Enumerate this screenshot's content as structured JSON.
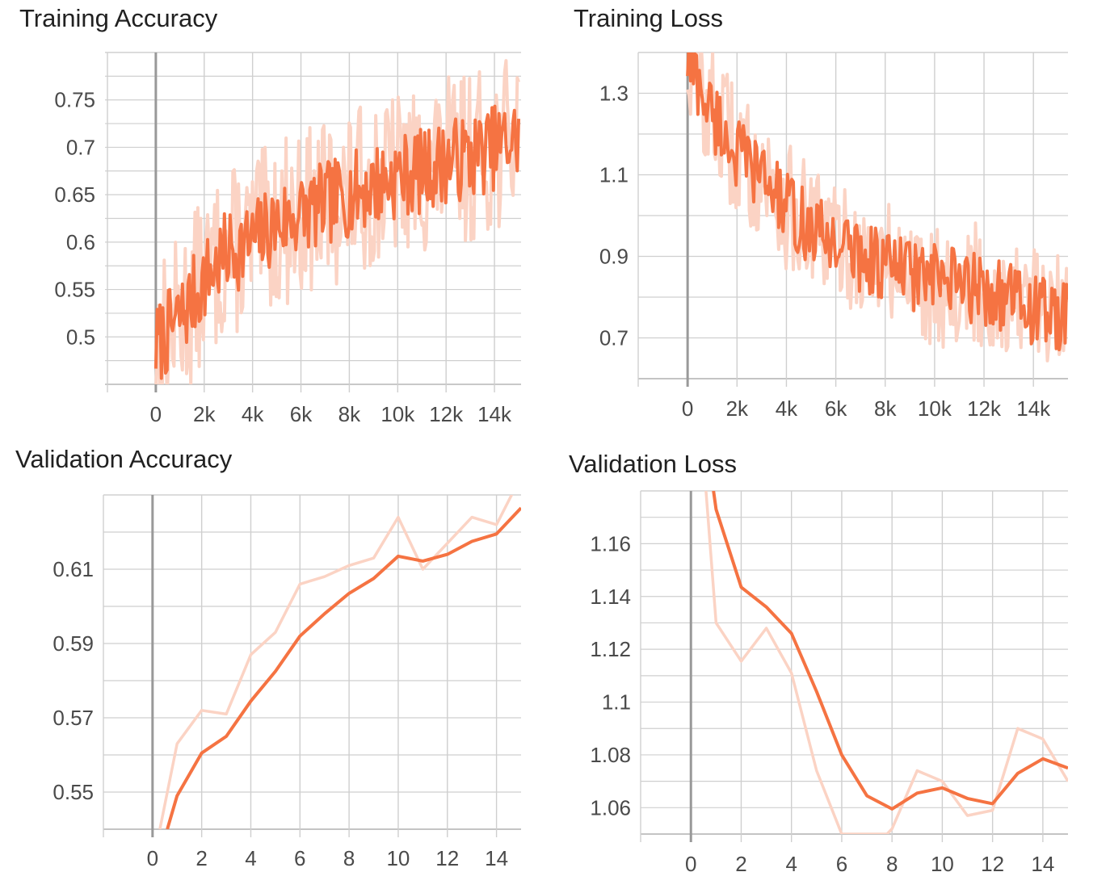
{
  "colors": {
    "smoothed": "#f57342",
    "raw": "#fbd3c4",
    "grid": "#cfcfcf",
    "zero_axis": "#999999"
  },
  "chart_data": [
    {
      "title": "Training Accuracy",
      "type": "line",
      "xlim": [
        -2100,
        15100
      ],
      "ylim": [
        0.45,
        0.8
      ],
      "x_ticks": [
        0,
        2000,
        4000,
        6000,
        8000,
        10000,
        12000,
        14000
      ],
      "x_tick_labels": [
        "0",
        "2k",
        "4k",
        "6k",
        "8k",
        "10k",
        "12k",
        "14k"
      ],
      "y_ticks": [
        0.5,
        0.55,
        0.6,
        0.65,
        0.7,
        0.75
      ],
      "y_tick_labels": [
        "0.5",
        "0.55",
        "0.6",
        "0.65",
        "0.7",
        "0.75"
      ],
      "trend": {
        "x": [
          0,
          1000,
          2000,
          3000,
          4000,
          5000,
          6000,
          7000,
          8000,
          9000,
          10000,
          11000,
          12000,
          13000,
          14000,
          15000
        ],
        "y": [
          0.49,
          0.52,
          0.56,
          0.59,
          0.6,
          0.62,
          0.63,
          0.64,
          0.65,
          0.66,
          0.67,
          0.675,
          0.685,
          0.69,
          0.7,
          0.71
        ]
      },
      "noise": {
        "smoothed": 0.045,
        "raw": 0.09
      },
      "series": [
        {
          "style": "raw",
          "values": "derived-from-trend"
        },
        {
          "style": "smoothed",
          "values": "derived-from-trend"
        }
      ],
      "grid": true,
      "legend": "none"
    },
    {
      "title": "Training Loss",
      "type": "line",
      "xlim": [
        -2000,
        15400
      ],
      "ylim": [
        0.6,
        1.4
      ],
      "x_ticks": [
        0,
        2000,
        4000,
        6000,
        8000,
        10000,
        12000,
        14000
      ],
      "x_tick_labels": [
        "0",
        "2k",
        "4k",
        "6k",
        "8k",
        "10k",
        "12k",
        "14k"
      ],
      "y_ticks": [
        0.7,
        0.9,
        1.1,
        1.3
      ],
      "y_tick_labels": [
        "0.7",
        "0.9",
        "1.1",
        "1.3"
      ],
      "trend": {
        "x": [
          0,
          1000,
          2000,
          3000,
          4000,
          5000,
          6000,
          7000,
          8000,
          9000,
          10000,
          11000,
          12000,
          13000,
          14000,
          15400
        ],
        "y": [
          1.38,
          1.25,
          1.15,
          1.1,
          1.02,
          0.96,
          0.94,
          0.9,
          0.88,
          0.86,
          0.84,
          0.83,
          0.82,
          0.8,
          0.77,
          0.74
        ]
      },
      "noise": {
        "smoothed": 0.09,
        "raw": 0.16
      },
      "series": [
        {
          "style": "raw",
          "values": "derived-from-trend"
        },
        {
          "style": "smoothed",
          "values": "derived-from-trend"
        }
      ],
      "grid": true,
      "legend": "none"
    },
    {
      "title": "Validation Accuracy",
      "type": "line",
      "xlim": [
        -2,
        15
      ],
      "ylim": [
        0.54,
        0.63
      ],
      "x_ticks": [
        0,
        2,
        4,
        6,
        8,
        10,
        12,
        14
      ],
      "x_tick_labels": [
        "0",
        "2",
        "4",
        "6",
        "8",
        "10",
        "12",
        "14"
      ],
      "y_ticks": [
        0.55,
        0.57,
        0.59,
        0.61
      ],
      "y_tick_labels": [
        "0.55",
        "0.57",
        "0.59",
        "0.61"
      ],
      "series": [
        {
          "style": "raw",
          "x": [
            0.3,
            1,
            2,
            3,
            4,
            5,
            6,
            7,
            8,
            9,
            10,
            11,
            12,
            13,
            14,
            15
          ],
          "y": [
            0.54,
            0.563,
            0.572,
            0.571,
            0.587,
            0.593,
            0.606,
            0.608,
            0.611,
            0.613,
            0.624,
            0.61,
            0.617,
            0.624,
            0.622,
            0.635
          ]
        },
        {
          "style": "smoothed",
          "x": [
            0.6,
            1,
            2,
            3,
            4,
            5,
            6,
            7,
            8,
            9,
            10,
            11,
            12,
            13,
            14,
            15
          ],
          "y": [
            0.54,
            0.549,
            0.5605,
            0.565,
            0.5745,
            0.5825,
            0.592,
            0.598,
            0.6035,
            0.6075,
            0.6135,
            0.6122,
            0.614,
            0.6175,
            0.6195,
            0.6265
          ]
        }
      ],
      "grid": true,
      "legend": "none"
    },
    {
      "title": "Validation Loss",
      "type": "line",
      "xlim": [
        -2,
        15
      ],
      "ylim": [
        1.05,
        1.18
      ],
      "x_ticks": [
        0,
        2,
        4,
        6,
        8,
        10,
        12,
        14
      ],
      "x_tick_labels": [
        "0",
        "2",
        "4",
        "6",
        "8",
        "10",
        "12",
        "14"
      ],
      "y_ticks": [
        1.06,
        1.08,
        1.1,
        1.12,
        1.14,
        1.16
      ],
      "y_tick_labels": [
        "1.06",
        "1.08",
        "1.1",
        "1.12",
        "1.14",
        "1.16"
      ],
      "series": [
        {
          "style": "raw",
          "x": [
            0.6,
            1,
            2,
            3,
            4,
            5,
            6,
            7.8,
            8,
            9,
            10,
            11,
            12,
            13,
            14,
            15
          ],
          "y": [
            1.18,
            1.13,
            1.1155,
            1.128,
            1.111,
            1.074,
            1.05,
            1.05,
            1.052,
            1.074,
            1.07,
            1.057,
            1.059,
            1.09,
            1.086,
            1.07
          ]
        },
        {
          "style": "smoothed",
          "x": [
            0.9,
            1,
            2,
            3,
            4,
            5,
            6,
            7,
            8,
            9,
            10,
            11,
            12,
            13,
            14,
            15
          ],
          "y": [
            1.18,
            1.173,
            1.1435,
            1.136,
            1.126,
            1.104,
            1.08,
            1.0645,
            1.0595,
            1.0655,
            1.0675,
            1.0635,
            1.0615,
            1.073,
            1.0785,
            1.075
          ]
        }
      ],
      "grid": true,
      "legend": "none"
    }
  ]
}
